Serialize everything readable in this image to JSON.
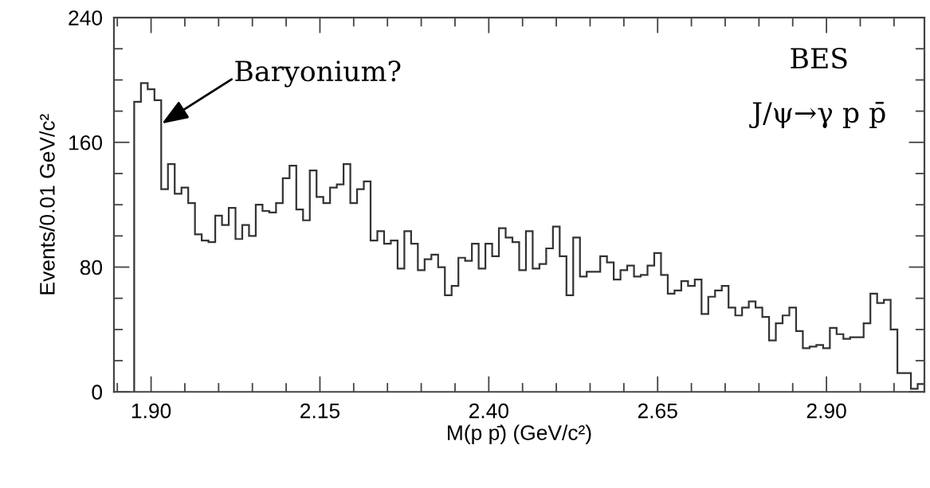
{
  "chart_data": {
    "type": "histogram",
    "xlabel": "M(p p̄) (GeV/c²)",
    "ylabel": "Events/0.01 GeV/c²",
    "bins": [
      1.875,
      1.885,
      1.895,
      1.905,
      1.915,
      1.925,
      1.935,
      1.945,
      1.955,
      1.965,
      1.975,
      1.985,
      1.995,
      2.005,
      2.015,
      2.025,
      2.035,
      2.045,
      2.055,
      2.065,
      2.075,
      2.085,
      2.095,
      2.105,
      2.115,
      2.125,
      2.135,
      2.145,
      2.155,
      2.165,
      2.175,
      2.185,
      2.195,
      2.205,
      2.215,
      2.225,
      2.235,
      2.245,
      2.255,
      2.265,
      2.275,
      2.285,
      2.295,
      2.305,
      2.315,
      2.325,
      2.335,
      2.345,
      2.355,
      2.365,
      2.375,
      2.385,
      2.395,
      2.405,
      2.415,
      2.425,
      2.435,
      2.445,
      2.455,
      2.465,
      2.475,
      2.485,
      2.495,
      2.505,
      2.515,
      2.525,
      2.535,
      2.545,
      2.555,
      2.565,
      2.575,
      2.585,
      2.595,
      2.605,
      2.615,
      2.625,
      2.635,
      2.645,
      2.655,
      2.665,
      2.675,
      2.685,
      2.695,
      2.705,
      2.715,
      2.725,
      2.735,
      2.745,
      2.755,
      2.765,
      2.775,
      2.785,
      2.795,
      2.805,
      2.815,
      2.825,
      2.835,
      2.845,
      2.855,
      2.865,
      2.875,
      2.885,
      2.895,
      2.905,
      2.915,
      2.925,
      2.935,
      2.945,
      2.955,
      2.965,
      2.975,
      2.985,
      2.995,
      3.005,
      3.015,
      3.025,
      3.035,
      3.045
    ],
    "values": [
      186,
      198,
      194,
      187,
      130,
      146,
      127,
      131,
      121,
      101,
      97,
      96,
      113,
      107,
      118,
      98,
      107,
      100,
      120,
      116,
      115,
      121,
      137,
      145,
      117,
      110,
      142,
      125,
      121,
      131,
      133,
      146,
      121,
      130,
      135,
      97,
      103,
      95,
      97,
      79,
      103,
      95,
      78,
      85,
      88,
      80,
      62,
      68,
      86,
      84,
      95,
      79,
      95,
      87,
      105,
      99,
      96,
      78,
      103,
      79,
      82,
      92,
      106,
      87,
      62,
      99,
      74,
      77,
      77,
      87,
      83,
      72,
      78,
      81,
      74,
      75,
      81,
      89,
      75,
      63,
      65,
      71,
      68,
      72,
      50,
      61,
      65,
      68,
      54,
      49,
      54,
      58,
      54,
      48,
      33,
      44,
      49,
      54,
      39,
      28,
      29,
      30,
      28,
      41,
      37,
      34,
      35,
      35,
      44,
      63,
      57,
      59,
      40,
      12,
      12,
      2,
      5
    ],
    "color": "#333333",
    "xlim": [
      1.845,
      3.045
    ],
    "ylim": [
      0,
      240
    ],
    "xticks": [
      {
        "value": 1.85,
        "label": null
      },
      {
        "value": 1.9,
        "label": "1.90"
      },
      {
        "value": 1.95,
        "label": null
      },
      {
        "value": 2.0,
        "label": null
      },
      {
        "value": 2.05,
        "label": null
      },
      {
        "value": 2.1,
        "label": null
      },
      {
        "value": 2.15,
        "label": "2.15"
      },
      {
        "value": 2.2,
        "label": null
      },
      {
        "value": 2.25,
        "label": null
      },
      {
        "value": 2.3,
        "label": null
      },
      {
        "value": 2.35,
        "label": null
      },
      {
        "value": 2.4,
        "label": "2.40"
      },
      {
        "value": 2.45,
        "label": null
      },
      {
        "value": 2.5,
        "label": null
      },
      {
        "value": 2.55,
        "label": null
      },
      {
        "value": 2.6,
        "label": null
      },
      {
        "value": 2.65,
        "label": "2.65"
      },
      {
        "value": 2.7,
        "label": null
      },
      {
        "value": 2.75,
        "label": null
      },
      {
        "value": 2.8,
        "label": null
      },
      {
        "value": 2.85,
        "label": null
      },
      {
        "value": 2.9,
        "label": "2.90"
      },
      {
        "value": 2.95,
        "label": null
      },
      {
        "value": 3.0,
        "label": null
      }
    ],
    "yticks": [
      0,
      {
        "value": 20,
        "label": null
      },
      {
        "value": 40,
        "label": null
      },
      {
        "value": 60,
        "label": null
      },
      80,
      {
        "value": 100,
        "label": null
      },
      {
        "value": 120,
        "label": null
      },
      {
        "value": 140,
        "label": null
      },
      160,
      {
        "value": 180,
        "label": null
      },
      {
        "value": 200,
        "label": null
      },
      {
        "value": 220,
        "label": null
      },
      240
    ],
    "grid": false,
    "legend": false,
    "annotations": [
      {
        "text": "Baryonium?",
        "x": 1.916,
        "y": 172
      },
      "BES",
      "J/ψ→γ p p̄"
    ]
  }
}
